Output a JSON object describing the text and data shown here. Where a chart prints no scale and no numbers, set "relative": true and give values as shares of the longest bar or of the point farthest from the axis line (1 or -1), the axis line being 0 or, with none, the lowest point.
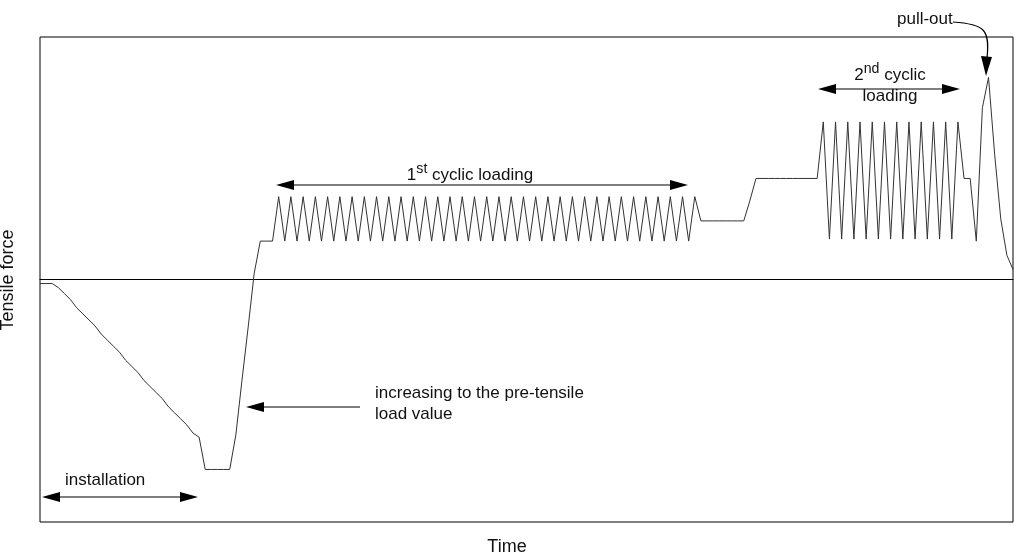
{
  "chart_data": {
    "type": "line",
    "xlabel": "Time",
    "ylabel": "Tensile force",
    "relative": true,
    "color": "#333333",
    "categories": [
      null,
      null,
      null,
      null,
      null,
      null,
      null,
      null,
      null,
      null,
      null,
      null,
      null,
      null,
      null,
      null,
      null,
      null,
      null,
      null,
      null,
      null,
      null,
      null,
      null,
      null,
      null,
      null,
      null,
      null,
      null,
      null,
      null,
      null,
      null,
      null,
      null,
      null,
      null,
      null,
      null,
      null,
      null,
      null,
      null,
      null,
      null,
      null,
      null,
      null,
      null,
      null,
      null,
      null,
      null,
      null,
      null,
      null,
      null,
      null,
      null,
      null,
      null,
      null,
      null,
      null,
      null,
      null,
      null,
      null,
      null,
      null,
      null,
      null,
      null,
      null,
      null,
      null,
      null,
      null,
      null,
      null,
      null,
      null,
      null,
      null,
      null,
      null,
      null,
      null,
      null,
      null,
      null,
      null,
      null,
      null,
      null,
      null,
      null,
      null,
      null,
      null,
      null,
      null,
      null,
      null,
      null,
      null,
      null,
      null,
      null,
      null,
      null,
      null,
      null,
      null,
      null,
      null,
      null,
      null,
      null,
      null,
      null,
      null,
      null,
      null,
      null,
      null,
      null,
      null,
      null,
      null,
      null,
      null,
      null,
      null,
      null,
      null,
      null,
      null,
      null,
      null,
      null,
      null,
      null,
      null,
      null,
      null,
      null,
      null,
      null,
      null,
      null,
      null,
      null,
      null,
      null,
      null,
      null,
      null
    ],
    "values": [
      -0.02,
      -0.02,
      -0.02,
      -0.04,
      -0.07,
      -0.1,
      -0.14,
      -0.17,
      -0.2,
      -0.23,
      -0.27,
      -0.3,
      -0.33,
      -0.36,
      -0.4,
      -0.43,
      -0.46,
      -0.5,
      -0.53,
      -0.56,
      -0.59,
      -0.63,
      -0.66,
      -0.69,
      -0.72,
      -0.76,
      -0.78,
      -0.94,
      -0.94,
      -0.94,
      -0.94,
      -0.94,
      -0.77,
      -0.5,
      -0.24,
      0.03,
      0.19,
      0.19,
      0.19,
      0.41,
      0.19,
      0.41,
      0.19,
      0.41,
      0.19,
      0.41,
      0.19,
      0.41,
      0.19,
      0.41,
      0.19,
      0.41,
      0.19,
      0.41,
      0.19,
      0.41,
      0.19,
      0.41,
      0.19,
      0.41,
      0.19,
      0.41,
      0.19,
      0.41,
      0.19,
      0.41,
      0.19,
      0.41,
      0.19,
      0.41,
      0.19,
      0.41,
      0.19,
      0.41,
      0.19,
      0.41,
      0.19,
      0.41,
      0.19,
      0.41,
      0.19,
      0.41,
      0.19,
      0.41,
      0.19,
      0.41,
      0.19,
      0.41,
      0.19,
      0.41,
      0.19,
      0.41,
      0.19,
      0.41,
      0.19,
      0.41,
      0.19,
      0.41,
      0.19,
      0.41,
      0.19,
      0.41,
      0.19,
      0.41,
      0.19,
      0.41,
      0.19,
      0.41,
      0.29,
      0.29,
      0.29,
      0.29,
      0.29,
      0.29,
      0.29,
      0.29,
      0.39,
      0.5,
      0.5,
      0.5,
      0.5,
      0.5,
      0.5,
      0.5,
      0.5,
      0.5,
      0.5,
      0.5,
      0.78,
      0.2,
      0.78,
      0.2,
      0.78,
      0.2,
      0.78,
      0.2,
      0.78,
      0.2,
      0.78,
      0.2,
      0.78,
      0.2,
      0.78,
      0.2,
      0.78,
      0.2,
      0.78,
      0.2,
      0.78,
      0.2,
      0.78,
      0.5,
      0.5,
      0.19,
      0.85,
      1,
      0.62,
      0.3,
      0.12,
      0.05
    ],
    "annotations": [
      "installation",
      "1$^{st}$ cyclic loading",
      "2$^{nd}$ cyclic loading",
      "increasing to the pre-tensile load value",
      "pull-out"
    ]
  }
}
